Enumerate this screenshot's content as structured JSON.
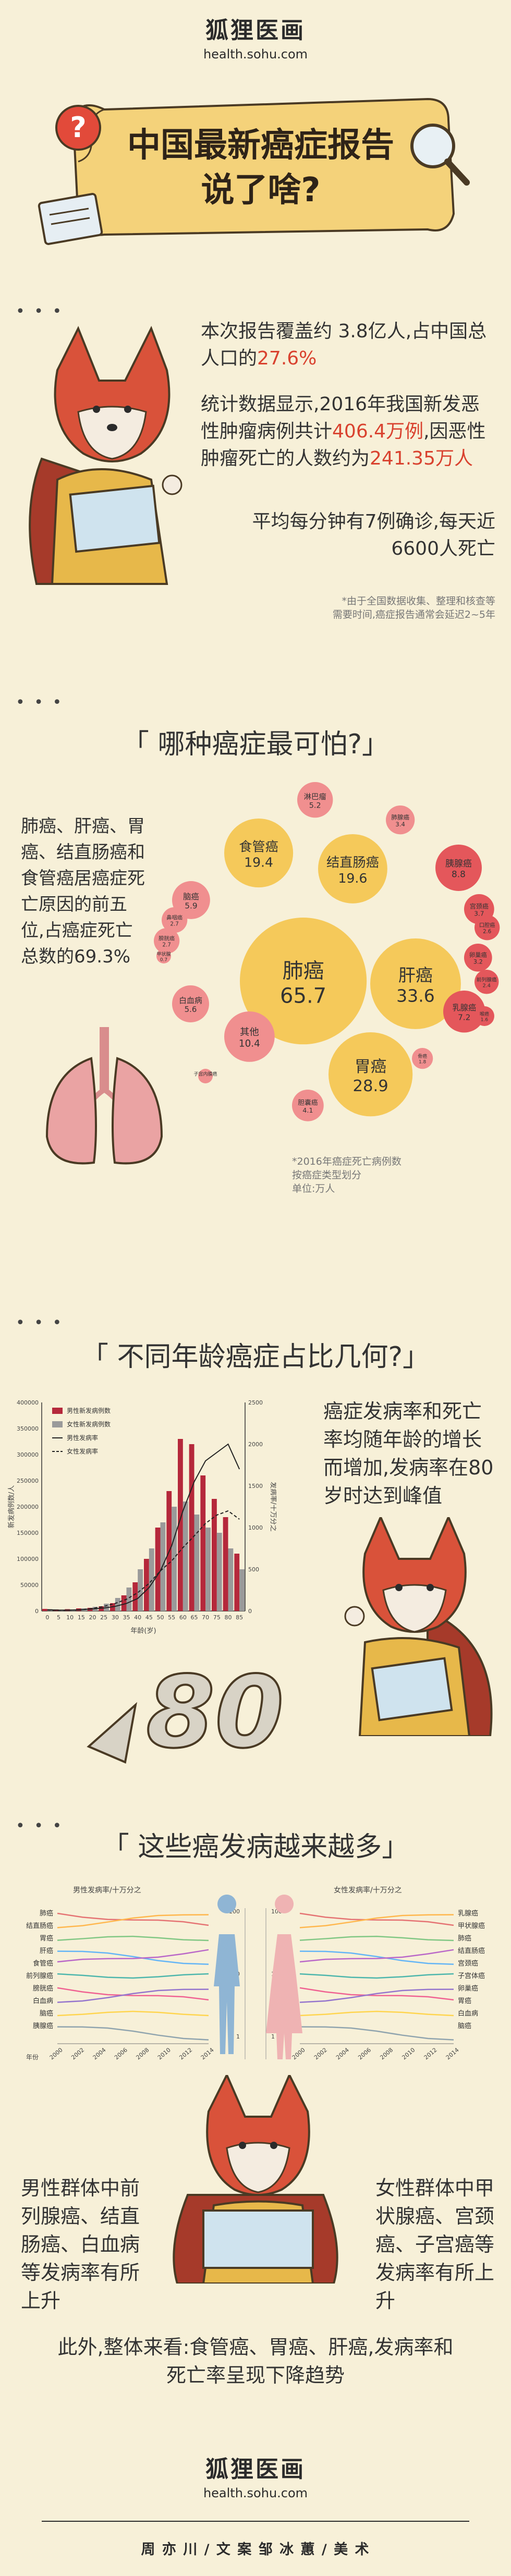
{
  "brand": {
    "name": "狐狸医画",
    "url": "health.sohu.com"
  },
  "banner": {
    "line1": "中国最新癌症报告",
    "line2": "说了啥?"
  },
  "intro": {
    "p1_pre": "本次报告覆盖约 3.8亿人,占中国总人口的",
    "p1_hl": "27.6%",
    "p2_pre": "统计数据显示,2016年我国新发恶性肿瘤病例共计",
    "p2_hl1": "406.4万例",
    "p2_mid": ",因恶性肿瘤死亡的人数约为",
    "p2_hl2": "241.35万人",
    "p3": "平均每分钟有7例确诊,每天近 6600人死亡",
    "note1": "*由于全国数据收集、整理和核查等",
    "note2": "需要时间,癌症报告通常会延迟2~5年"
  },
  "section1": {
    "title": "「 哪种癌症最可怕?」",
    "text": "肺癌、肝癌、胃癌、结直肠癌和食管癌居癌症死亡原因的前五位,占癌症死亡总数的69.3%",
    "note1": "*2016年癌症死亡病例数",
    "note2": "按癌症类型划分",
    "note3": "单位:万人",
    "colors": {
      "yellow": "#f5c95a",
      "pink": "#f08f8f",
      "red": "#e4575b"
    }
  },
  "bubble_chart": {
    "type": "bubble",
    "items": [
      {
        "label": "肺癌",
        "value": "65.7"
      },
      {
        "label": "肝癌",
        "value": "33.6"
      },
      {
        "label": "胃癌",
        "value": "28.9"
      },
      {
        "label": "结直肠癌",
        "value": "19.6"
      },
      {
        "label": "食管癌",
        "value": "19.4"
      },
      {
        "label": "其他",
        "value": "10.4"
      },
      {
        "label": "胰腺癌",
        "value": "8.8"
      },
      {
        "label": "乳腺癌",
        "value": "7.2"
      },
      {
        "label": "脑癌",
        "value": "5.9"
      },
      {
        "label": "白血病",
        "value": "5.6"
      },
      {
        "label": "淋巴瘤",
        "value": "5.2"
      },
      {
        "label": "胆囊癌",
        "value": "4.1"
      },
      {
        "label": "宫颈癌",
        "value": "3.7"
      },
      {
        "label": "肺腺癌",
        "value": "3.4"
      },
      {
        "label": "卵巢癌",
        "value": "3.2"
      },
      {
        "label": "膀胱癌",
        "value": "2.7"
      },
      {
        "label": "口腔癌",
        "value": "2.6"
      },
      {
        "label": "鼻咽癌",
        "value": "2.7"
      },
      {
        "label": "甲状腺",
        "value": "0.7"
      },
      {
        "label": "子宫内膜癌",
        "value": ""
      },
      {
        "label": "喉癌",
        "value": "1.6"
      },
      {
        "label": "前列腺癌",
        "value": "2.4"
      },
      {
        "label": "骨癌",
        "value": "1.8"
      }
    ]
  },
  "section2": {
    "title": "「 不同年龄癌症占比几何?」",
    "text": "癌症发病率和死亡率均随年龄的增长而增加,发病率在80岁时达到峰值",
    "big_number": "80"
  },
  "chart_data": {
    "type": "bar",
    "categories": [
      "0",
      "5",
      "10",
      "15",
      "20",
      "25",
      "30",
      "35",
      "40",
      "45",
      "50",
      "55",
      "60",
      "65",
      "70",
      "75",
      "80",
      "85"
    ],
    "series": [
      {
        "name": "男性新发病例数",
        "values": [
          4000,
          3000,
          3500,
          5000,
          6000,
          9000,
          15000,
          30000,
          55000,
          100000,
          160000,
          230000,
          330000,
          320000,
          260000,
          215000,
          180000,
          110000
        ]
      },
      {
        "name": "女性新发病例数",
        "values": [
          3500,
          2500,
          3000,
          5000,
          8000,
          14000,
          25000,
          45000,
          80000,
          120000,
          170000,
          200000,
          210000,
          185000,
          160000,
          150000,
          120000,
          80000
        ]
      },
      {
        "name": "男性发病率",
        "values": [
          15,
          10,
          10,
          15,
          25,
          35,
          55,
          90,
          150,
          280,
          480,
          780,
          1200,
          1550,
          1800,
          1900,
          2000,
          1700
        ]
      },
      {
        "name": "女性发病率",
        "values": [
          12,
          8,
          10,
          15,
          30,
          55,
          90,
          140,
          220,
          330,
          480,
          600,
          760,
          900,
          1050,
          1150,
          1200,
          1100
        ]
      }
    ],
    "ylabel_left": "新发病例数/人",
    "ylabel_right": "发病率/十万分之",
    "xlabel": "年龄(岁)",
    "ylim_left": [
      0,
      400000
    ],
    "ylim_right": [
      0,
      2500
    ],
    "left_ticks": [
      "0",
      "50000",
      "100000",
      "150000",
      "200000",
      "250000",
      "300000",
      "350000",
      "400000"
    ],
    "right_ticks": [
      "0",
      "500",
      "1000",
      "1500",
      "2000",
      "2500"
    ],
    "colors": {
      "male_bar": "#b5283b",
      "female_bar": "#9a9a9a",
      "male_line": "#222222",
      "female_line": "#222222"
    }
  },
  "section3": {
    "title": "「 这些癌发病越来越多」",
    "left_header": "男性发病率/十万分之",
    "right_header": "女性发病率/十万分之",
    "left_labels": [
      "肺癌",
      "结直肠癌",
      "胃癌",
      "肝癌",
      "食管癌",
      "前列腺癌",
      "膀胱癌",
      "白血病",
      "脑癌",
      "胰腺癌"
    ],
    "right_labels": [
      "乳腺癌",
      "甲状腺癌",
      "肺癌",
      "结直肠癌",
      "宫颈癌",
      "子宫体癌",
      "卵巢癌",
      "胃癌",
      "白血病",
      "脑癌"
    ],
    "years": [
      "2000",
      "2002",
      "2004",
      "2006",
      "2008",
      "2010",
      "2012",
      "2014"
    ],
    "axis_label": "年份",
    "center_ticks": [
      "100",
      "10",
      "1"
    ],
    "trend_colors": [
      "#e57373",
      "#ffb74d",
      "#81c784",
      "#64b5f6",
      "#ba68c8",
      "#4db6ac",
      "#f06292",
      "#9575cd",
      "#ffd54f",
      "#90a4ae"
    ],
    "male_text": "男性群体中前列腺癌、结直肠癌、白血病等发病率有所上升",
    "female_text": "女性群体中甲状腺癌、宫颈癌、子宫癌等发病率有所上升",
    "summary": "此外,整体来看:食管癌、胃癌、肝癌,发病率和死亡率呈现下降趋势"
  },
  "footer": {
    "credits": "周 亦 川 / 文 案     邹 冰 蕙 / 美 术"
  },
  "dots": "• • •"
}
